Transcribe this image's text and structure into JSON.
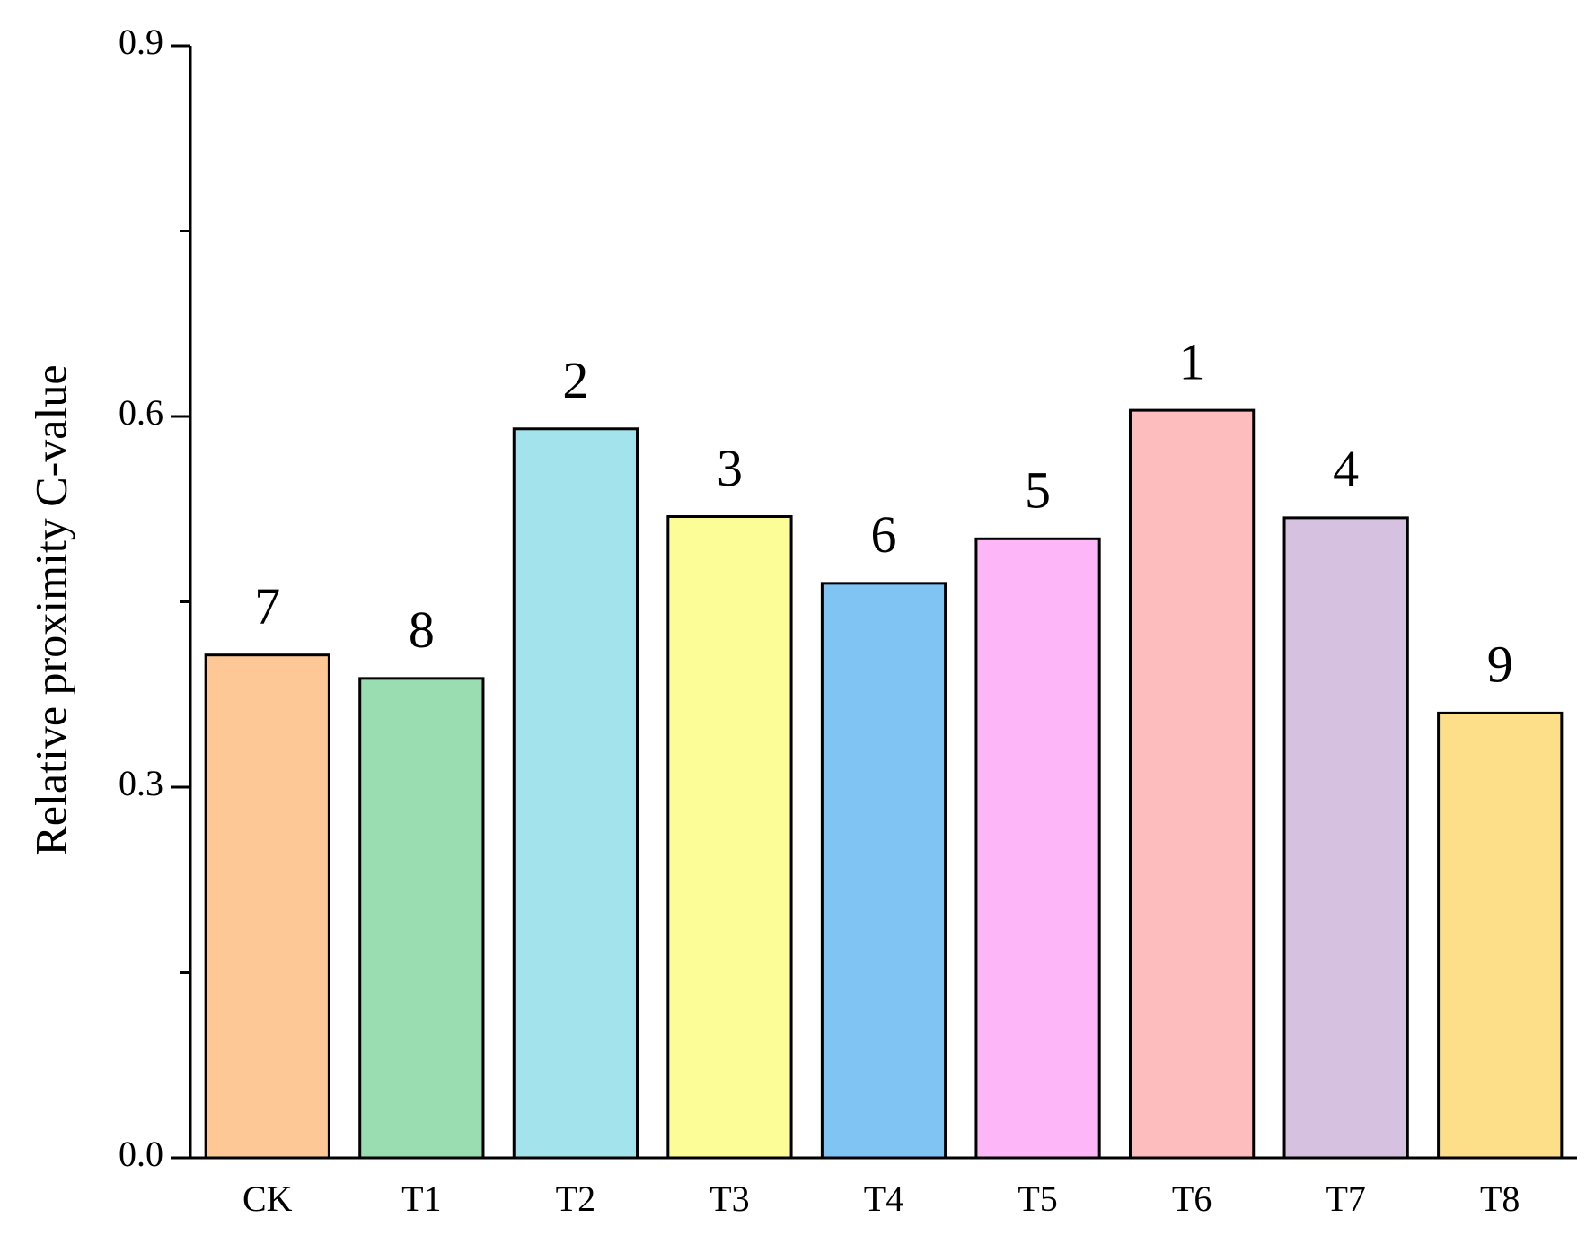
{
  "chart_data": {
    "type": "bar",
    "y_label": "Relative proximity C-value",
    "categories": [
      "CK",
      "T1",
      "T2",
      "T3",
      "T4",
      "T5",
      "T6",
      "T7",
      "T8"
    ],
    "values": [
      0.407,
      0.388,
      0.59,
      0.519,
      0.465,
      0.501,
      0.605,
      0.518,
      0.36
    ],
    "ranks": [
      7,
      8,
      2,
      3,
      6,
      5,
      1,
      4,
      9
    ],
    "colors": [
      "#fdc896",
      "#9addb0",
      "#a3e4ec",
      "#fdfd98",
      "#80c4f4",
      "#fdb6f8",
      "#fdbcbe",
      "#d6c1e0",
      "#fddf8a"
    ],
    "ylim": [
      0,
      0.9
    ],
    "yticks": [
      {
        "value": 0,
        "label": "0.0"
      },
      0.3,
      0.6,
      0.9
    ],
    "minor_yticks": [
      0.15,
      0.45,
      0.75
    ],
    "grid": false
  }
}
